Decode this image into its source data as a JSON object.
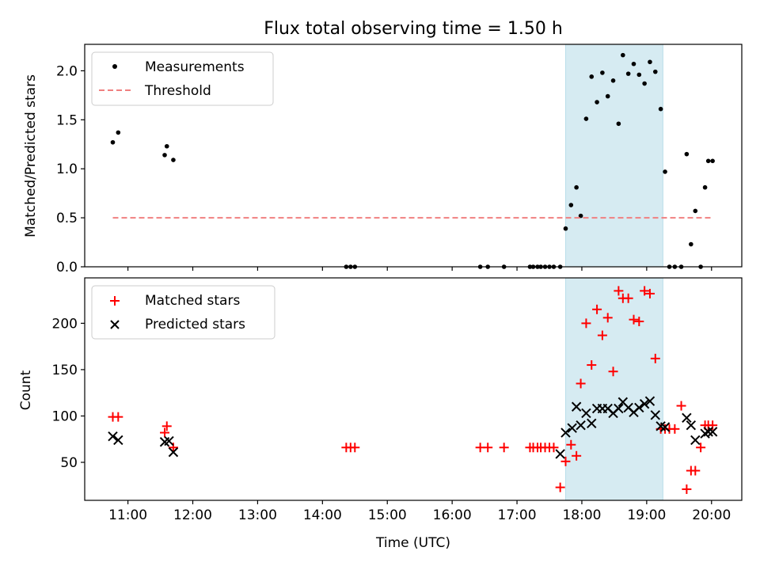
{
  "chart_data": [
    {
      "type": "scatter",
      "title": "Flux total observing time = 1.50 h",
      "ylabel": "Matched/Predicted stars",
      "xlim": [
        "10:20",
        "20:28"
      ],
      "ylim": [
        0,
        2.27
      ],
      "yticks": [
        0.0,
        0.5,
        1.0,
        1.5,
        2.0
      ],
      "ytick_labels": [
        "0.0",
        "0.5",
        "1.0",
        "1.5",
        "2.0"
      ],
      "highlight_span": {
        "x_start": "17:45",
        "x_end": "19:15",
        "color": "#add8e6"
      },
      "legend": {
        "placement": "upper-left",
        "entries": [
          "Measurements",
          "Threshold"
        ]
      },
      "series": [
        {
          "name": "Measurements",
          "marker": "dot",
          "color": "#000000",
          "x": [
            "10:46",
            "10:51",
            "11:34",
            "11:36",
            "11:42",
            "14:22",
            "14:26",
            "14:30",
            "16:26",
            "16:33",
            "16:48",
            "17:12",
            "17:15",
            "17:19",
            "17:22",
            "17:26",
            "17:30",
            "17:34",
            "17:40",
            "17:45",
            "17:50",
            "17:55",
            "17:59",
            "18:04",
            "18:09",
            "18:14",
            "18:19",
            "18:24",
            "18:29",
            "18:34",
            "18:38",
            "18:43",
            "18:48",
            "18:53",
            "18:58",
            "19:03",
            "19:08",
            "19:13",
            "19:17",
            "19:21",
            "19:26",
            "19:32",
            "19:37",
            "19:41",
            "19:45",
            "19:50",
            "19:54",
            "19:57",
            "20:01"
          ],
          "y": [
            1.27,
            1.37,
            1.14,
            1.23,
            1.09,
            0,
            0,
            0,
            0,
            0,
            0,
            0,
            0,
            0,
            0,
            0,
            0,
            0,
            0,
            0.39,
            0.63,
            0.81,
            0.52,
            1.51,
            1.94,
            1.68,
            1.98,
            1.74,
            1.9,
            1.46,
            2.16,
            1.97,
            2.07,
            1.96,
            1.87,
            2.09,
            1.99,
            1.61,
            0.97,
            0,
            0,
            0,
            1.15,
            0.23,
            0.57,
            0,
            0.81,
            1.08,
            1.08
          ]
        },
        {
          "name": "Threshold",
          "style": "dashed",
          "color": "#f08080",
          "x": [
            "10:46",
            "20:01"
          ],
          "y": [
            0.5,
            0.5
          ]
        }
      ]
    },
    {
      "type": "scatter",
      "xlabel": "Time (UTC)",
      "ylabel": "Count",
      "xlim": [
        "10:20",
        "20:28"
      ],
      "ylim": [
        9,
        249
      ],
      "xticks": [
        "11:00",
        "12:00",
        "13:00",
        "14:00",
        "15:00",
        "16:00",
        "17:00",
        "18:00",
        "19:00",
        "20:00"
      ],
      "yticks": [
        50,
        100,
        150,
        200
      ],
      "ytick_labels": [
        "50",
        "100",
        "150",
        "200"
      ],
      "highlight_span": {
        "x_start": "17:45",
        "x_end": "19:15",
        "color": "#add8e6"
      },
      "legend": {
        "placement": "upper-left",
        "entries": [
          "Matched stars",
          "Predicted stars"
        ]
      },
      "series": [
        {
          "name": "Matched stars",
          "marker": "plus",
          "color": "#ff0000",
          "x": [
            "10:46",
            "10:51",
            "11:34",
            "11:36",
            "11:42",
            "14:22",
            "14:26",
            "14:30",
            "16:26",
            "16:33",
            "16:48",
            "17:12",
            "17:15",
            "17:19",
            "17:22",
            "17:26",
            "17:30",
            "17:34",
            "17:40",
            "17:45",
            "17:50",
            "17:55",
            "17:59",
            "18:04",
            "18:09",
            "18:14",
            "18:19",
            "18:24",
            "18:29",
            "18:34",
            "18:38",
            "18:43",
            "18:48",
            "18:53",
            "18:58",
            "19:03",
            "19:08",
            "19:13",
            "19:17",
            "19:21",
            "19:26",
            "19:32",
            "19:37",
            "19:41",
            "19:45",
            "19:50",
            "19:54",
            "19:57",
            "20:01"
          ],
          "y": [
            99,
            99,
            82,
            89,
            66,
            66,
            66,
            66,
            66,
            66,
            66,
            66,
            66,
            66,
            66,
            66,
            66,
            66,
            23,
            51,
            69,
            57,
            135,
            200,
            155,
            215,
            187,
            206,
            148,
            235,
            227,
            227,
            204,
            202,
            235,
            232,
            162,
            86,
            86,
            86,
            86,
            111,
            21,
            41,
            41,
            66,
            90,
            90,
            90
          ]
        },
        {
          "name": "Predicted stars",
          "marker": "x",
          "color": "#000000",
          "x": [
            "10:46",
            "10:51",
            "11:34",
            "11:38",
            "11:42",
            "17:40",
            "17:45",
            "17:51",
            "17:55",
            "17:59",
            "18:04",
            "18:09",
            "18:14",
            "18:19",
            "18:24",
            "18:29",
            "18:34",
            "18:38",
            "18:43",
            "18:48",
            "18:53",
            "18:58",
            "19:03",
            "19:08",
            "19:13",
            "19:17",
            "19:37",
            "19:41",
            "19:45",
            "19:54",
            "19:57",
            "20:01"
          ],
          "y": [
            78,
            74,
            72,
            73,
            61,
            59,
            82,
            87,
            110,
            90,
            103,
            92,
            108,
            108,
            108,
            103,
            108,
            115,
            109,
            104,
            109,
            113,
            116,
            101,
            89,
            88,
            98,
            90,
            74,
            81,
            83,
            83
          ]
        }
      ]
    }
  ]
}
